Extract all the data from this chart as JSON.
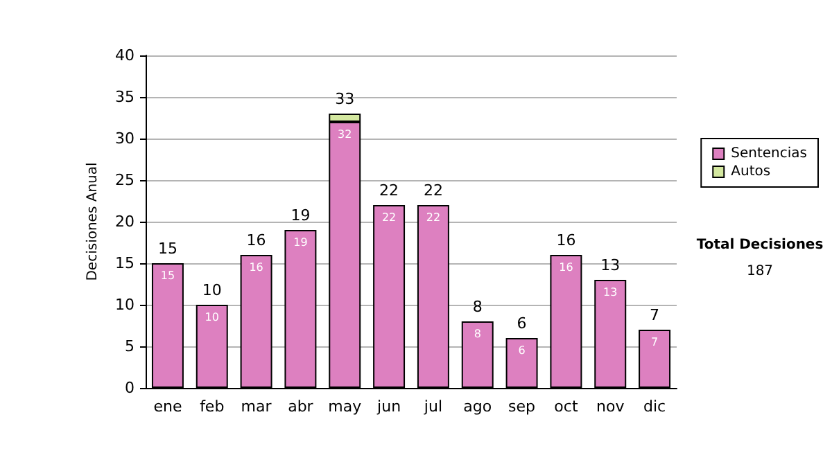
{
  "chart_data": {
    "type": "bar",
    "stacked": true,
    "ylabel": "Decisiones Anual",
    "categories": [
      "ene",
      "feb",
      "mar",
      "abr",
      "may",
      "jun",
      "jul",
      "ago",
      "sep",
      "oct",
      "nov",
      "dic"
    ],
    "series": [
      {
        "name": "Sentencias",
        "color": "#dd80c0",
        "values": [
          15,
          10,
          16,
          19,
          32,
          22,
          22,
          8,
          6,
          16,
          13,
          7
        ],
        "value_labels": [
          "15",
          "10",
          "16",
          "19",
          "32",
          "22",
          "22",
          "8",
          "6",
          "16",
          "13",
          "7"
        ]
      },
      {
        "name": "Autos",
        "color": "#d4e8a0",
        "values": [
          0,
          0,
          0,
          0,
          1,
          0,
          0,
          0,
          0,
          0,
          0,
          0
        ]
      }
    ],
    "totals": [
      "15",
      "10",
      "16",
      "19",
      "33",
      "22",
      "22",
      "8",
      "6",
      "16",
      "13",
      "7"
    ],
    "ylim": [
      0,
      40
    ],
    "yticks": [
      0,
      5,
      10,
      15,
      20,
      25,
      30,
      35,
      40
    ],
    "grid": "y",
    "legend": "right",
    "annotations": [
      "Total Decisiones",
      "187"
    ]
  }
}
